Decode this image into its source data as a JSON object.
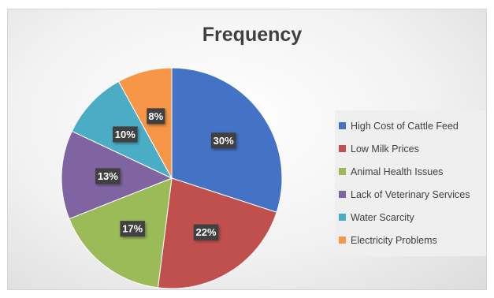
{
  "chart_data": {
    "type": "pie",
    "title": "Frequency",
    "categories": [
      "High Cost of Cattle Feed",
      "Low Milk Prices",
      "Animal Health Issues",
      "Lack of Veterinary Services",
      "Water Scarcity",
      "Electricity Problems"
    ],
    "values": [
      30,
      22,
      17,
      13,
      10,
      8
    ],
    "data_labels": [
      "30%",
      "22%",
      "17%",
      "13%",
      "10%",
      "8%"
    ],
    "colors": [
      "#4472c4",
      "#c0504d",
      "#9bbb59",
      "#8064a2",
      "#4bacc6",
      "#f79646"
    ],
    "legend_position": "right"
  }
}
